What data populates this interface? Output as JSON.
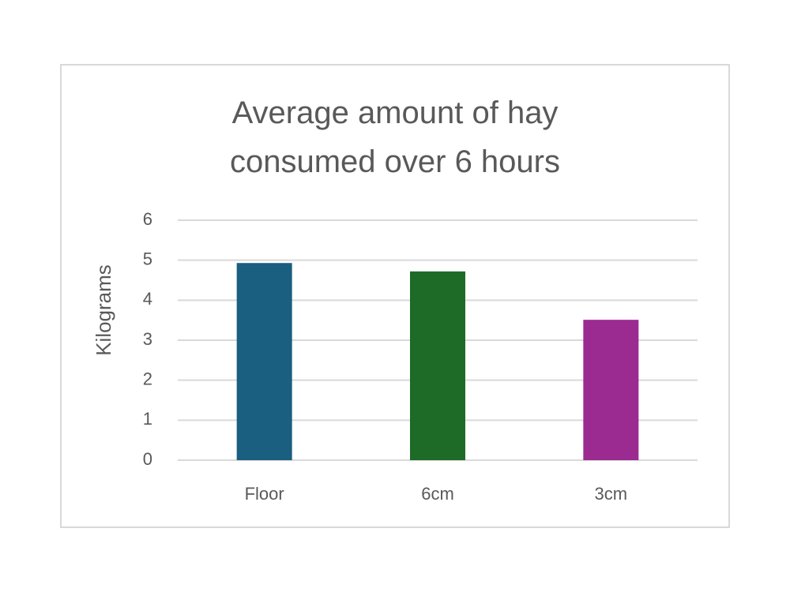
{
  "chart_data": {
    "type": "bar",
    "title": "Average amount of hay consumed over 6 hours",
    "y_axis_label": "Kilograms",
    "categories": [
      "Floor",
      "6cm",
      "3cm"
    ],
    "values": [
      4.93,
      4.72,
      3.51
    ],
    "colors": [
      "#1a5e80",
      "#1e6b27",
      "#9b2a91"
    ],
    "ylim": [
      0,
      6
    ],
    "yticks": [
      0,
      1,
      2,
      3,
      4,
      5,
      6
    ],
    "grid": true
  }
}
